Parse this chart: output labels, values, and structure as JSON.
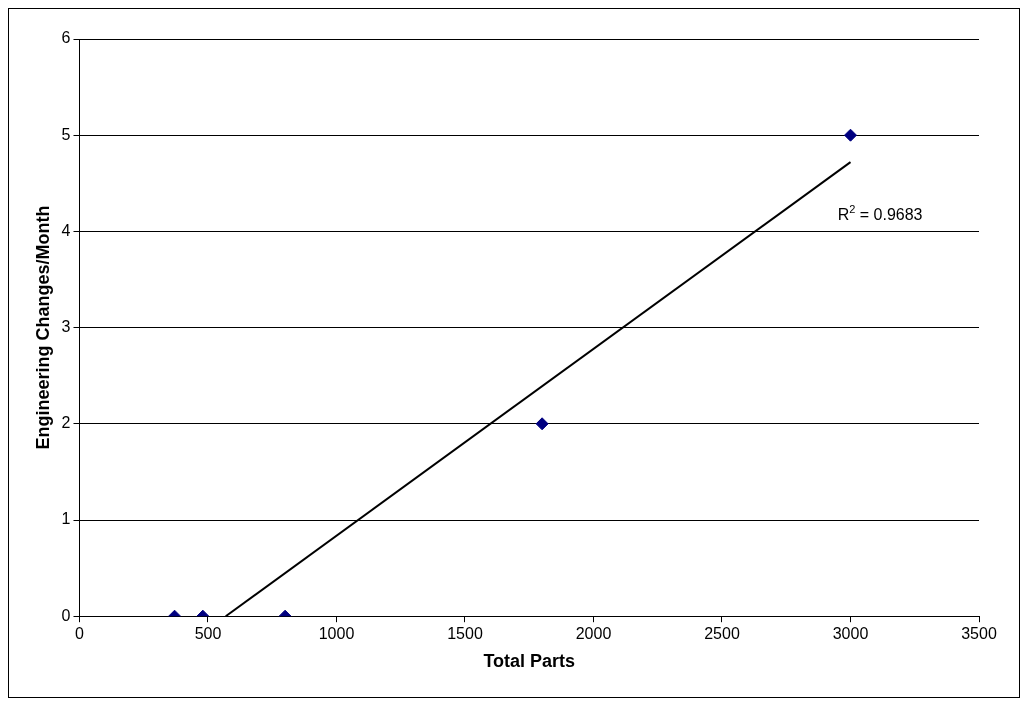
{
  "chart_data": {
    "type": "scatter",
    "xlabel": "Total Parts",
    "ylabel": "Engineering Changes/Month",
    "xlim": [
      0,
      3500
    ],
    "xticks": [
      0,
      500,
      1000,
      1500,
      2000,
      2500,
      3000,
      3500
    ],
    "ylim": [
      0,
      6
    ],
    "yticks": [
      0,
      1,
      2,
      3,
      4,
      5,
      6
    ],
    "grid": "y",
    "legend": false,
    "marker": "diamond",
    "series": [
      {
        "color": "#000080",
        "x": [
          370,
          480,
          800,
          1800,
          3000
        ],
        "values": [
          0,
          0,
          0,
          2,
          5
        ]
      },
      {
        "type": "line",
        "color": "#000000",
        "marker": "none",
        "x": [
          569,
          3000
        ],
        "values": [
          0,
          4.72
        ]
      }
    ],
    "annotations": [
      "R$^{2}$ = 0.9683"
    ]
  }
}
